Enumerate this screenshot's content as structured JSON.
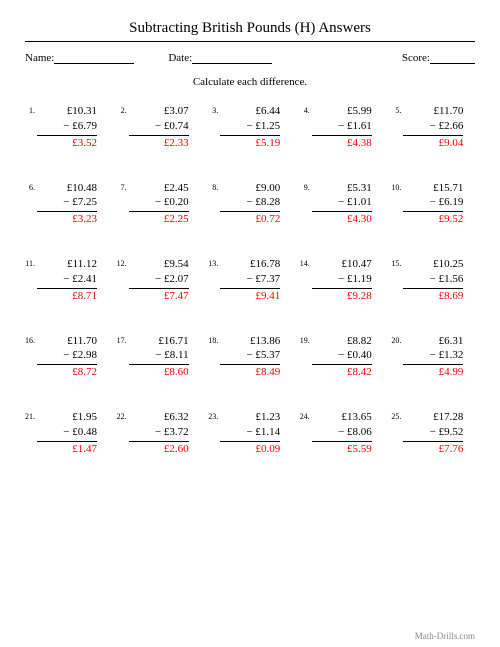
{
  "title": "Subtracting British Pounds (H) Answers",
  "header": {
    "name_label": "Name:",
    "date_label": "Date:",
    "score_label": "Score:"
  },
  "instruction": "Calculate each difference.",
  "colors": {
    "answer": "#ff0000",
    "text": "#000000",
    "background": "#ffffff",
    "footer": "#888888"
  },
  "problems": [
    {
      "n": "1.",
      "top": "£10.31",
      "bot": "− £6.79",
      "ans": "£3.52"
    },
    {
      "n": "2.",
      "top": "£3.07",
      "bot": "− £0.74",
      "ans": "£2.33"
    },
    {
      "n": "3.",
      "top": "£6.44",
      "bot": "− £1.25",
      "ans": "£5.19"
    },
    {
      "n": "4.",
      "top": "£5.99",
      "bot": "− £1.61",
      "ans": "£4.38"
    },
    {
      "n": "5.",
      "top": "£11.70",
      "bot": "− £2.66",
      "ans": "£9.04"
    },
    {
      "n": "6.",
      "top": "£10.48",
      "bot": "− £7.25",
      "ans": "£3.23"
    },
    {
      "n": "7.",
      "top": "£2.45",
      "bot": "− £0.20",
      "ans": "£2.25"
    },
    {
      "n": "8.",
      "top": "£9.00",
      "bot": "− £8.28",
      "ans": "£0.72"
    },
    {
      "n": "9.",
      "top": "£5.31",
      "bot": "− £1.01",
      "ans": "£4.30"
    },
    {
      "n": "10.",
      "top": "£15.71",
      "bot": "− £6.19",
      "ans": "£9.52"
    },
    {
      "n": "11.",
      "top": "£11.12",
      "bot": "− £2.41",
      "ans": "£8.71"
    },
    {
      "n": "12.",
      "top": "£9.54",
      "bot": "− £2.07",
      "ans": "£7.47"
    },
    {
      "n": "13.",
      "top": "£16.78",
      "bot": "− £7.37",
      "ans": "£9.41"
    },
    {
      "n": "14.",
      "top": "£10.47",
      "bot": "− £1.19",
      "ans": "£9.28"
    },
    {
      "n": "15.",
      "top": "£10.25",
      "bot": "− £1.56",
      "ans": "£8.69"
    },
    {
      "n": "16.",
      "top": "£11.70",
      "bot": "− £2.98",
      "ans": "£8.72"
    },
    {
      "n": "17.",
      "top": "£16.71",
      "bot": "− £8.11",
      "ans": "£8.60"
    },
    {
      "n": "18.",
      "top": "£13.86",
      "bot": "− £5.37",
      "ans": "£8.49"
    },
    {
      "n": "19.",
      "top": "£8.82",
      "bot": "− £0.40",
      "ans": "£8.42"
    },
    {
      "n": "20.",
      "top": "£6.31",
      "bot": "− £1.32",
      "ans": "£4.99"
    },
    {
      "n": "21.",
      "top": "£1.95",
      "bot": "− £0.48",
      "ans": "£1.47"
    },
    {
      "n": "22.",
      "top": "£6.32",
      "bot": "− £3.72",
      "ans": "£2.60"
    },
    {
      "n": "23.",
      "top": "£1.23",
      "bot": "− £1.14",
      "ans": "£0.09"
    },
    {
      "n": "24.",
      "top": "£13.65",
      "bot": "− £8.06",
      "ans": "£5.59"
    },
    {
      "n": "25.",
      "top": "£17.28",
      "bot": "− £9.52",
      "ans": "£7.76"
    }
  ],
  "footer": "Math-Drills.com"
}
